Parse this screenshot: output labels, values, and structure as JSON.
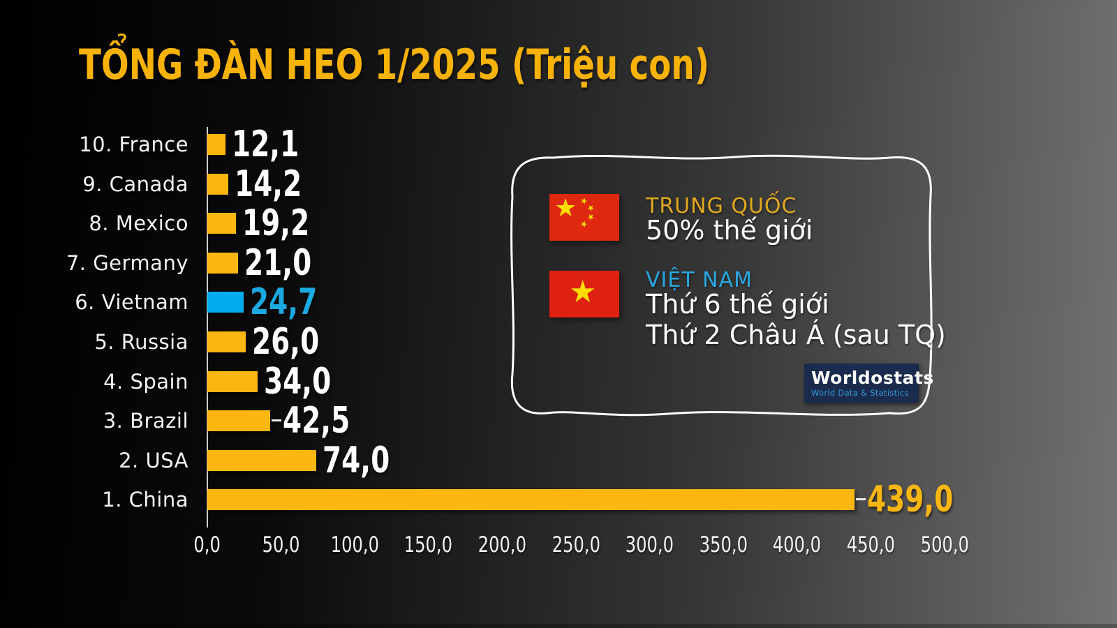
{
  "page": {
    "title": "TỔNG ĐÀN HEO 1/2025 (Triệu con)"
  },
  "colors": {
    "background_start": "#000000",
    "background_end": "#707070",
    "title_amber": "#F8B208",
    "bar_yellow": "#FBB610",
    "bar_blue": "#00ACEE",
    "value_white": "#FFFFFF",
    "value_blue": "#1BA9E1",
    "value_amber": "#FBB610",
    "axis_line": "#CFCFCF",
    "annotation_border": "#FFFFFF",
    "trung_quoc_label": "#DFA81F",
    "viet_nam_label": "#29A8E0",
    "flag_red": "#DE2910",
    "flag_star_yellow": "#FFDE00",
    "logo_bg": "#1B2B4D",
    "logo_subtitle": "#2F9BD8"
  },
  "chart_data": {
    "type": "bar",
    "orientation": "horizontal",
    "title": "TỔNG ĐÀN HEO 1/2025 (Triệu con)",
    "unit": "Triệu con",
    "categories": [
      "10. France",
      "9. Canada",
      "8. Mexico",
      "7. Germany",
      "6. Vietnam",
      "5. Russia",
      "4. Spain",
      "3. Brazil",
      "2. USA",
      "1. China"
    ],
    "values": [
      12.1,
      14.2,
      19.2,
      21.0,
      24.7,
      26.0,
      34.0,
      42.5,
      74.0,
      439.0
    ],
    "value_labels": [
      "12,1",
      "14,2",
      "19,2",
      "21,0",
      "24,7",
      "26,0",
      "34,0",
      "42,5",
      "74,0",
      "439,0"
    ],
    "bar_colors": [
      "#FBB610",
      "#FBB610",
      "#FBB610",
      "#FBB610",
      "#00ACEE",
      "#FBB610",
      "#FBB610",
      "#FBB610",
      "#FBB610",
      "#FBB610"
    ],
    "value_colors": [
      "#FFFFFF",
      "#FFFFFF",
      "#FFFFFF",
      "#FFFFFF",
      "#1BA9E1",
      "#FFFFFF",
      "#FFFFFF",
      "#FFFFFF",
      "#FFFFFF",
      "#FBB610"
    ],
    "highlight_index": 4,
    "leader_line_indices": [
      7,
      9
    ],
    "xlim": [
      0,
      500
    ],
    "x_tick_values": [
      0,
      50,
      100,
      150,
      200,
      250,
      300,
      350,
      400,
      450,
      500
    ],
    "x_tick_labels": [
      "0,0",
      "50,0",
      "100,0",
      "150,0",
      "200,0",
      "250,0",
      "300,0",
      "350,0",
      "400,0",
      "450,0",
      "500,0"
    ],
    "grid": false,
    "legend": false
  },
  "annotation": {
    "china": {
      "name": "TRUNG QUỐC",
      "detail": "50% thế giới"
    },
    "vietnam": {
      "name": "VIỆT NAM",
      "detail_line1": "Thứ 6 thế giới",
      "detail_line2": "Thứ 2 Châu Á (sau TQ)"
    },
    "logo": {
      "title": "Worldostats",
      "subtitle": "World Data & Statistics"
    }
  }
}
